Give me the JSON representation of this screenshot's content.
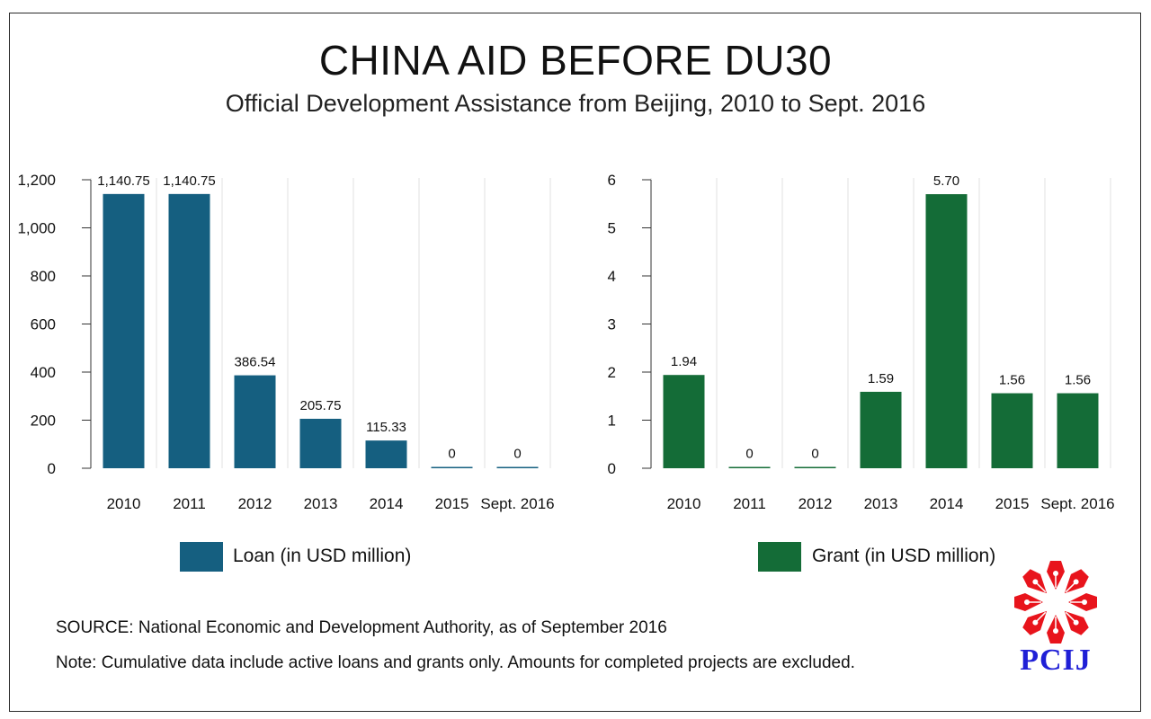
{
  "header": {
    "title": "CHINA AID BEFORE DU30",
    "subtitle": "Official Development Assistance from Beijing, 2010 to Sept. 2016"
  },
  "colors": {
    "loan": "#155f80",
    "grant": "#146c37",
    "logo_red": "#e8141c",
    "logo_blue": "#1f1fd6"
  },
  "chart_data": [
    {
      "type": "bar",
      "categories": [
        "2010",
        "2011",
        "2012",
        "2013",
        "2014",
        "2015",
        "Sept. 2016"
      ],
      "series": [
        {
          "name": "Loan (in USD million)",
          "values": [
            1140.75,
            1140.75,
            386.54,
            205.75,
            115.33,
            0,
            0
          ],
          "labels": [
            "1,140.75",
            "1,140.75",
            "386.54",
            "205.75",
            "115.33",
            "0",
            "0"
          ]
        }
      ],
      "ylim": [
        0,
        1200
      ],
      "yticks": [
        0,
        200,
        400,
        600,
        800,
        1000,
        1200
      ],
      "ytick_labels": [
        "0",
        "200",
        "400",
        "600",
        "800",
        "1,000",
        "1,200"
      ],
      "grid": "vertical",
      "legend": "bottom"
    },
    {
      "type": "bar",
      "categories": [
        "2010",
        "2011",
        "2012",
        "2013",
        "2014",
        "2015",
        "Sept. 2016"
      ],
      "series": [
        {
          "name": "Grant (in USD million)",
          "values": [
            1.94,
            0,
            0,
            1.59,
            5.7,
            1.56,
            1.56
          ],
          "labels": [
            "1.94",
            "0",
            "0",
            "1.59",
            "5.70",
            "1.56",
            "1.56"
          ]
        }
      ],
      "ylim": [
        0,
        6
      ],
      "yticks": [
        0,
        1,
        2,
        3,
        4,
        5,
        6
      ],
      "ytick_labels": [
        "0",
        "1",
        "2",
        "3",
        "4",
        "5",
        "6"
      ],
      "grid": "vertical",
      "legend": "bottom"
    }
  ],
  "legend": {
    "loan_label": "Loan (in USD million)",
    "grant_label": "Grant (in USD million)"
  },
  "footer": {
    "source": "SOURCE: National Economic and Development Authority, as of September 2016",
    "note": "Note: Cumulative data include active loans and grants only. Amounts for completed projects are excluded."
  },
  "logo": {
    "text": "PCIJ"
  }
}
